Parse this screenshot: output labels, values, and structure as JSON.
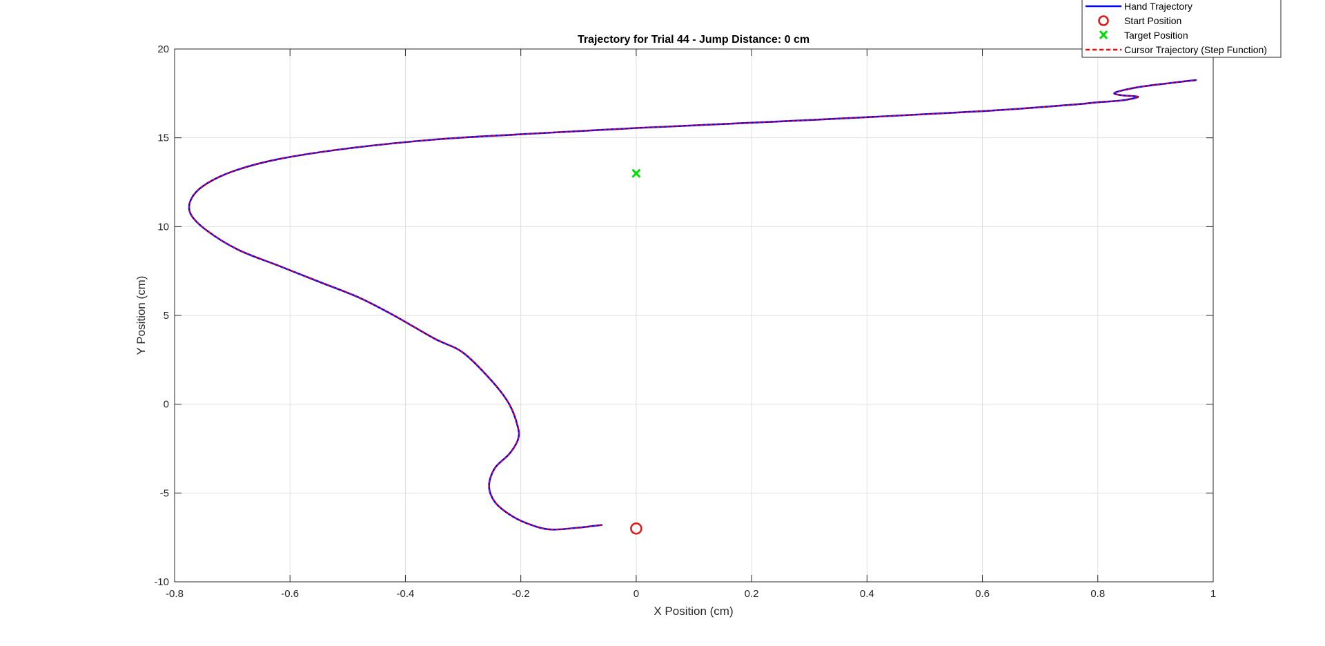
{
  "chart_data": {
    "type": "line",
    "title": "Trajectory for Trial 44 - Jump Distance: 0 cm",
    "xlabel": "X Position (cm)",
    "ylabel": "Y Position (cm)",
    "xlim": [
      -0.8,
      1
    ],
    "ylim": [
      -10,
      20
    ],
    "xticks": [
      -0.8,
      -0.6,
      -0.4,
      -0.2,
      0,
      0.2,
      0.4,
      0.6,
      0.8,
      1
    ],
    "xtick_labels": [
      "-0.8",
      "-0.6",
      "-0.4",
      "-0.2",
      "0",
      "0.2",
      "0.4",
      "0.6",
      "0.8",
      "1"
    ],
    "yticks": [
      -10,
      -5,
      0,
      5,
      10,
      15,
      20
    ],
    "ytick_labels": [
      "-10",
      "-5",
      "0",
      "5",
      "10",
      "15",
      "20"
    ],
    "grid": true,
    "legend_position": "top-right",
    "series": [
      {
        "name": "Hand Trajectory",
        "kind": "line",
        "color": "#0000ff",
        "x": [
          -0.06,
          -0.1,
          -0.15,
          -0.19,
          -0.22,
          -0.245,
          -0.255,
          -0.245,
          -0.22,
          -0.205,
          -0.205,
          -0.22,
          -0.25,
          -0.3,
          -0.35,
          -0.42,
          -0.48,
          -0.55,
          -0.62,
          -0.69,
          -0.745,
          -0.772,
          -0.772,
          -0.75,
          -0.7,
          -0.62,
          -0.5,
          -0.35,
          -0.2,
          0.0,
          0.3,
          0.6,
          0.75,
          0.8,
          0.84,
          0.87,
          0.84,
          0.83,
          0.87,
          0.93,
          0.97
        ],
        "y": [
          -6.8,
          -6.95,
          -7.05,
          -6.7,
          -6.2,
          -5.5,
          -4.6,
          -3.6,
          -2.8,
          -2.0,
          -1.3,
          0.0,
          1.3,
          2.9,
          3.7,
          5.0,
          6.0,
          6.9,
          7.8,
          8.7,
          9.8,
          10.7,
          11.5,
          12.3,
          13.1,
          13.8,
          14.4,
          14.9,
          15.2,
          15.55,
          16.0,
          16.5,
          16.85,
          17.0,
          17.1,
          17.3,
          17.4,
          17.55,
          17.85,
          18.1,
          18.25
        ]
      },
      {
        "name": "Start Position",
        "kind": "marker",
        "marker": "circle",
        "color": "#e31a1a",
        "x": [
          0
        ],
        "y": [
          -7
        ]
      },
      {
        "name": "Target Position",
        "kind": "marker",
        "marker": "x",
        "color": "#00dd00",
        "x": [
          0
        ],
        "y": [
          13
        ]
      },
      {
        "name": "Cursor Trajectory (Step Function)",
        "kind": "dashed-line",
        "color": "#ff0000",
        "same_as": "Hand Trajectory"
      }
    ]
  }
}
